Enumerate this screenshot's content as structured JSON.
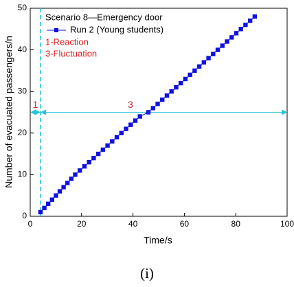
{
  "chart_data": {
    "type": "scatter",
    "legend_title": "Scenario 8—Emergency door",
    "xlabel": "Time/s",
    "ylabel": "Number of evacuated passengers/n",
    "caption": "(i)",
    "annotations": [
      "1-Reaction",
      "3-Fluctuation",
      "1",
      "3"
    ],
    "vline_x": 4,
    "hline_y": 25,
    "annotation_color": "#22c4d4",
    "xlim": [
      0,
      100
    ],
    "xticks": [
      0,
      20,
      40,
      60,
      80,
      100
    ],
    "ylim": [
      0,
      50
    ],
    "yticks": [
      0,
      10,
      20,
      30,
      40,
      50
    ],
    "legend": "upper left",
    "series": [
      {
        "name": "Run 2 (Young students)",
        "color": "#1010e0",
        "x": [
          4,
          5.5,
          7,
          8.5,
          10,
          11.5,
          13,
          14.5,
          16,
          17.5,
          19.3,
          21.1,
          22.9,
          24.7,
          26.5,
          28.3,
          30.1,
          31.9,
          33.7,
          35.5,
          37.3,
          39.1,
          40.9,
          42.7,
          46,
          47.8,
          49.6,
          51.4,
          53.2,
          55,
          56.8,
          58.6,
          60.4,
          62.2,
          64,
          65.8,
          67.6,
          69.4,
          71.2,
          73,
          74.8,
          76.6,
          78.4,
          80.2,
          82,
          83.8,
          85.6,
          87.4
        ],
        "values": [
          1,
          2,
          3,
          4,
          5,
          6,
          7,
          8,
          9,
          10,
          11,
          12,
          13,
          14,
          15,
          16,
          17,
          18,
          19,
          20,
          21,
          22,
          23,
          24,
          25,
          26,
          27,
          28,
          29,
          30,
          31,
          32,
          33,
          34,
          35,
          36,
          37,
          38,
          39,
          40,
          41,
          42,
          43,
          44,
          45,
          46,
          47,
          48
        ]
      }
    ]
  }
}
